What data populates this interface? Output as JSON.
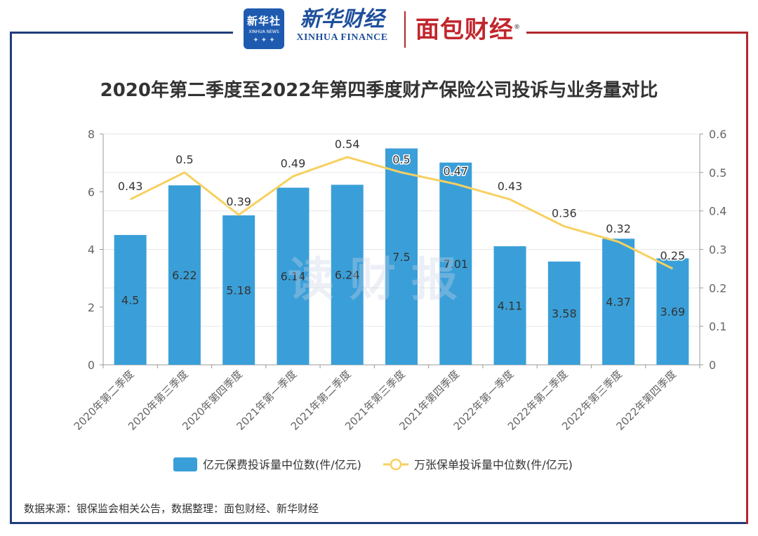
{
  "header": {
    "xinhua_she": "新华社",
    "xinhua_she_en": "XINHUA NEWS",
    "xinhua_finance_cn": "新华财经",
    "xinhua_finance_en": "XINHUA FINANCE",
    "mianbao": "面包财经",
    "registered_mark": "®"
  },
  "watermark": "读财报",
  "source_note": "数据来源：银保监会相关公告，数据整理：面包财经、新华财经",
  "colors": {
    "bar": "#3a9fd8",
    "line": "#f7d060",
    "axis": "#666666",
    "grid": "#e6e6e6",
    "frame_blue": "#1f3d7a",
    "frame_red": "#b3282d"
  },
  "chart_data": {
    "type": "bar+line",
    "title": "2020年第二季度至2022年第四季度财产保险公司投诉与业务量对比",
    "categories": [
      "2020年第二季度",
      "2020年第三季度",
      "2020年第四季度",
      "2021年第一季度",
      "2021年第二季度",
      "2021年第三季度",
      "2021年第四季度",
      "2022年第一季度",
      "2022年第二季度",
      "2022年第三季度",
      "2022年第四季度"
    ],
    "series": [
      {
        "name": "亿元保费投诉量中位数(件/亿元)",
        "type": "bar",
        "axis": "left",
        "values": [
          4.5,
          6.22,
          5.18,
          6.14,
          6.24,
          7.5,
          7.01,
          4.11,
          3.58,
          4.37,
          3.69
        ],
        "labels": [
          "4.5",
          "6.22",
          "5.18",
          "6.14",
          "6.24",
          "7.5",
          "7.01",
          "4.11",
          "3.58",
          "4.37",
          "3.69"
        ]
      },
      {
        "name": "万张保单投诉量中位数(件/亿元)",
        "type": "line",
        "axis": "right",
        "values": [
          0.43,
          0.5,
          0.39,
          0.49,
          0.54,
          0.5,
          0.47,
          0.43,
          0.36,
          0.32,
          0.25
        ],
        "labels": [
          "0.43",
          "0.5",
          "0.39",
          "0.49",
          "0.54",
          "0.5",
          "0.47",
          "0.43",
          "0.36",
          "0.32",
          "0.25"
        ]
      }
    ],
    "y_left": {
      "min": 0,
      "max": 8,
      "ticks": [
        "0",
        "2",
        "4",
        "6",
        "8"
      ]
    },
    "y_right": {
      "min": 0,
      "max": 0.6,
      "ticks": [
        "0",
        "0.1",
        "0.2",
        "0.3",
        "0.4",
        "0.5",
        "0.6"
      ]
    },
    "legend_position": "bottom-center",
    "grid": true
  }
}
